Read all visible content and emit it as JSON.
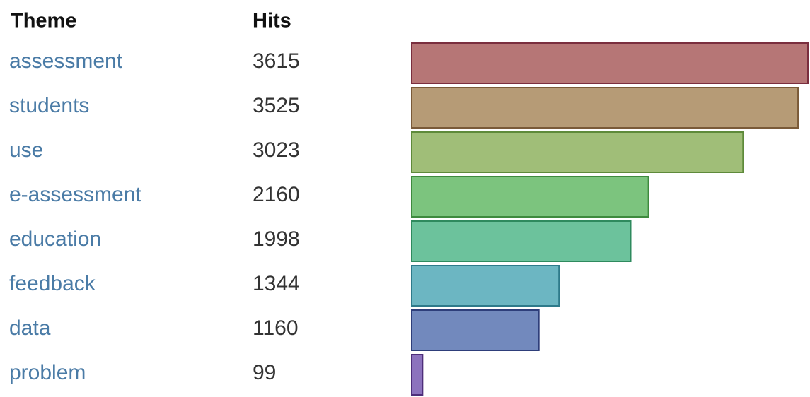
{
  "chart_data": {
    "type": "bar",
    "orientation": "horizontal",
    "headers": [
      "Theme",
      "Hits"
    ],
    "categories": [
      "assessment",
      "students",
      "use",
      "e-assessment",
      "education",
      "feedback",
      "data",
      "problem"
    ],
    "values": [
      3615,
      3525,
      3023,
      2160,
      1998,
      1344,
      1160,
      99
    ],
    "colors": [
      "#b67676",
      "#b69b76",
      "#a0be78",
      "#7cc47e",
      "#6cc29c",
      "#6cb6c2",
      "#7289bd",
      "#8c72bd"
    ],
    "border_colors": [
      "#7a2e3e",
      "#7a5a38",
      "#5e8a3a",
      "#3e8a3e",
      "#2e8a5e",
      "#2e7a8a",
      "#2e3e7a",
      "#4e2e7a"
    ]
  }
}
